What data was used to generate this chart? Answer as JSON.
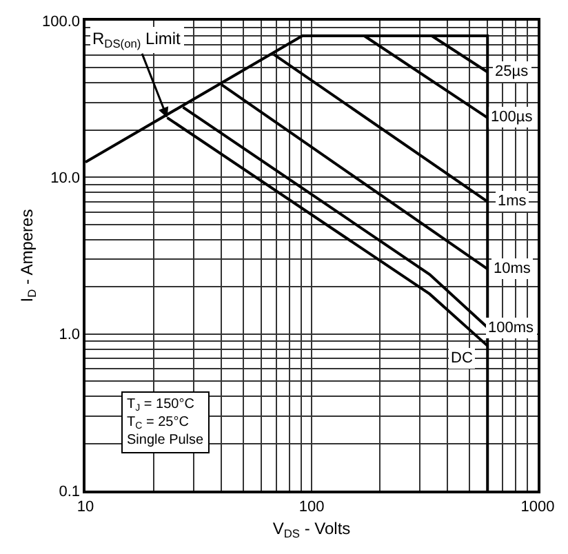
{
  "chart_data": {
    "type": "line",
    "xlabel": "V$_{DS}$ - Volts",
    "ylabel": "I$_{D}$ - Amperes",
    "log": "xy",
    "grid": true,
    "marker": "none",
    "line_style": "solid",
    "xlim": [
      10,
      1000
    ],
    "ylim": [
      0.1,
      100
    ],
    "xticks": [
      10,
      {
        "value": 20,
        "label": null
      },
      {
        "value": 30,
        "label": null
      },
      {
        "value": 40,
        "label": null
      },
      {
        "value": 50,
        "label": null
      },
      {
        "value": 60,
        "label": null
      },
      {
        "value": 70,
        "label": null
      },
      {
        "value": 80,
        "label": null
      },
      {
        "value": 90,
        "label": null
      },
      100,
      {
        "value": 200,
        "label": null
      },
      {
        "value": 300,
        "label": null
      },
      {
        "value": 400,
        "label": null
      },
      {
        "value": 500,
        "label": null
      },
      {
        "value": 600,
        "label": null
      },
      {
        "value": 700,
        "label": null
      },
      {
        "value": 800,
        "label": null
      },
      {
        "value": 900,
        "label": null
      },
      1000
    ],
    "yticks": [
      0.1,
      {
        "value": 0.2,
        "label": null
      },
      {
        "value": 0.3,
        "label": null
      },
      {
        "value": 0.4,
        "label": null
      },
      {
        "value": 0.5,
        "label": null
      },
      {
        "value": 0.6,
        "label": null
      },
      {
        "value": 0.7,
        "label": null
      },
      {
        "value": 0.8,
        "label": null
      },
      {
        "value": 0.9,
        "label": null
      },
      {
        "value": 1,
        "label": "1.0"
      },
      {
        "value": 2,
        "label": null
      },
      {
        "value": 3,
        "label": null
      },
      {
        "value": 4,
        "label": null
      },
      {
        "value": 5,
        "label": null
      },
      {
        "value": 6,
        "label": null
      },
      {
        "value": 7,
        "label": null
      },
      {
        "value": 8,
        "label": null
      },
      {
        "value": 9,
        "label": null
      },
      {
        "value": 10,
        "label": "10.0"
      },
      {
        "value": 20,
        "label": null
      },
      {
        "value": 30,
        "label": null
      },
      {
        "value": 40,
        "label": null
      },
      {
        "value": 50,
        "label": null
      },
      {
        "value": 60,
        "label": null
      },
      {
        "value": 70,
        "label": null
      },
      {
        "value": 80,
        "label": null
      },
      {
        "value": 90,
        "label": null
      },
      {
        "value": 100,
        "label": "100.0"
      }
    ],
    "series": [
      {
        "color": "#000000",
        "x": [
          10,
          91,
          600,
          600
        ],
        "values": [
          12.5,
          80,
          80,
          0.1
        ]
      },
      {
        "color": "#000000",
        "x": [
          340,
          600
        ],
        "values": [
          80,
          47
        ]
      },
      {
        "color": "#000000",
        "x": [
          171,
          600
        ],
        "values": [
          80,
          24
        ]
      },
      {
        "color": "#000000",
        "x": [
          68,
          600
        ],
        "values": [
          61,
          7.0
        ]
      },
      {
        "color": "#000000",
        "x": [
          40,
          600
        ],
        "values": [
          39,
          2.6
        ]
      },
      {
        "color": "#000000",
        "x": [
          27,
          333,
          600
        ],
        "values": [
          28,
          2.4,
          1.1
        ]
      },
      {
        "color": "#000000",
        "x": [
          23,
          333,
          600
        ],
        "values": [
          24,
          1.8,
          0.84
        ]
      }
    ],
    "annotations": [
      {
        "text": "R$_{DS(on)}$ Limit",
        "x": 23,
        "y": 24
      },
      {
        "text": "25µs",
        "x": 770,
        "y": 47
      },
      {
        "text": "100µs",
        "x": 770,
        "y": 24
      },
      {
        "text": "1ms",
        "x": 770,
        "y": 7.0
      },
      {
        "text": "10ms",
        "x": 770,
        "y": 2.6
      },
      {
        "text": "100ms",
        "x": 770,
        "y": 1.1
      },
      {
        "text": "DC",
        "x": 460,
        "y": 0.7
      },
      "T$_{J}$ = 150°C\nT$_{C}$ = 25°C\nSingle Pulse"
    ]
  }
}
